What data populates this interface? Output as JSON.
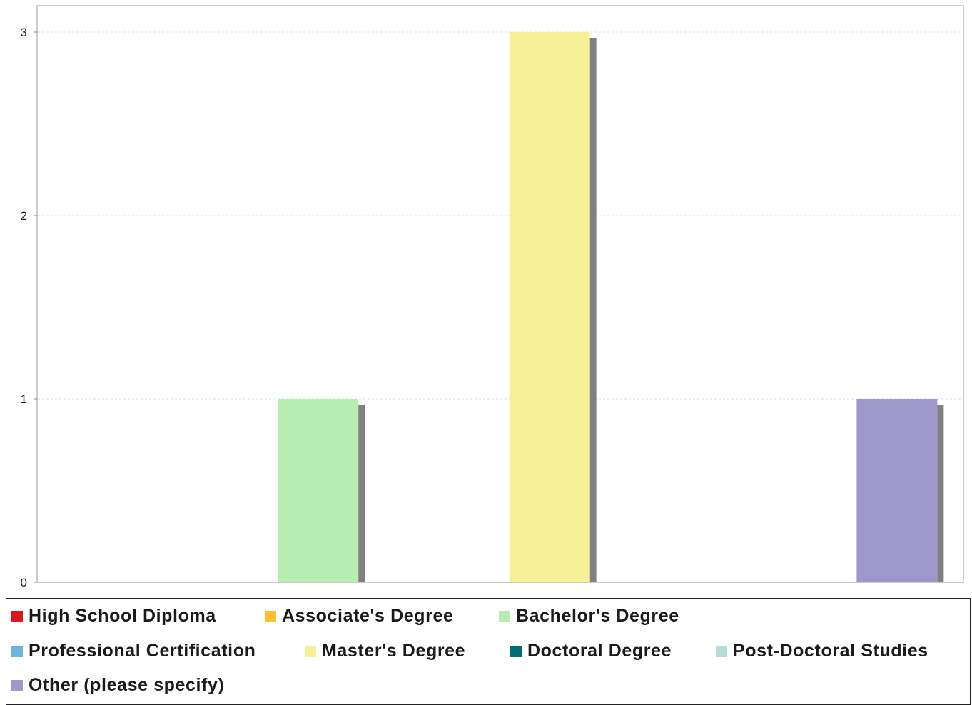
{
  "chart_data": {
    "type": "bar",
    "categories": [
      "High School Diploma",
      "Associate's Degree",
      "Bachelor's Degree",
      "Professional Certification",
      "Master's Degree",
      "Doctoral Degree",
      "Post-Doctoral Studies",
      "Other (please specify)"
    ],
    "values": [
      0,
      0,
      1,
      0,
      3,
      0,
      0,
      1
    ],
    "colors": [
      "#d7191c",
      "#fdc030",
      "#b7edb3",
      "#6ab7d8",
      "#f6f096",
      "#006d6f",
      "#b1dcd7",
      "#9e97c9"
    ],
    "ylim": [
      0,
      3
    ],
    "yticks": [
      0,
      1,
      2,
      3
    ],
    "grid": true,
    "legend": "bottom",
    "title": "",
    "xlabel": "",
    "ylabel": ""
  }
}
